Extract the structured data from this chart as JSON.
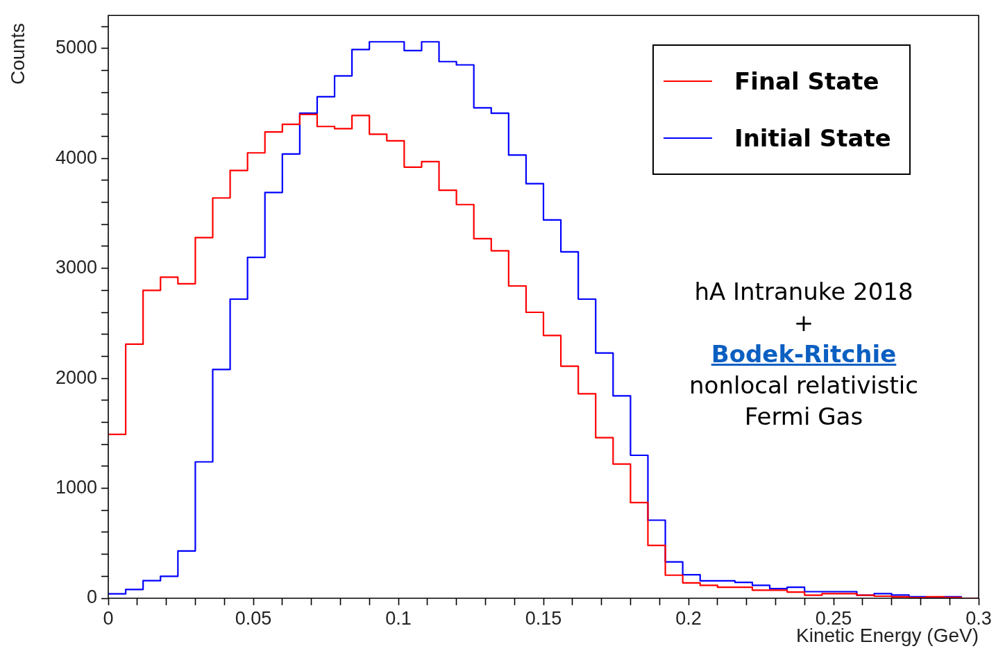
{
  "chart_data": {
    "type": "histogram",
    "xlabel": "Kinetic Energy (GeV)",
    "ylabel": "Counts",
    "annotations": [
      "hA Intranuke 2018",
      "+",
      "Bodek-Ritchie",
      "nonlocal relativistic",
      "Fermi Gas"
    ],
    "bins": [
      0,
      0.006,
      0.012,
      0.018,
      0.024,
      0.03,
      0.036,
      0.042,
      0.048,
      0.054,
      0.06,
      0.066,
      0.072,
      0.078,
      0.084,
      0.09,
      0.096,
      0.102,
      0.108,
      0.114,
      0.12,
      0.126,
      0.132,
      0.138,
      0.144,
      0.15,
      0.156,
      0.162,
      0.168,
      0.174,
      0.18,
      0.186,
      0.192,
      0.198,
      0.204,
      0.21,
      0.216,
      0.222,
      0.228,
      0.234,
      0.24,
      0.246,
      0.252,
      0.258,
      0.264,
      0.27,
      0.276,
      0.282,
      0.288,
      0.294,
      0.3
    ],
    "series": [
      {
        "name": "Final State",
        "color": "#ff0000",
        "values": [
          1490,
          2310,
          2800,
          2920,
          2860,
          3280,
          3640,
          3890,
          4050,
          4240,
          4310,
          4400,
          4290,
          4270,
          4390,
          4220,
          4160,
          3920,
          3970,
          3710,
          3580,
          3270,
          3160,
          2840,
          2600,
          2390,
          2110,
          1860,
          1460,
          1220,
          870,
          480,
          210,
          140,
          117,
          100,
          100,
          73,
          73,
          56,
          27,
          42,
          42,
          27,
          19,
          13,
          6,
          13,
          8,
          0
        ]
      },
      {
        "name": "Initial State",
        "color": "#0000ff",
        "values": [
          40,
          80,
          160,
          200,
          430,
          1240,
          2080,
          2720,
          3100,
          3690,
          4040,
          4410,
          4560,
          4750,
          4990,
          5060,
          5060,
          4980,
          5060,
          4880,
          4850,
          4460,
          4410,
          4030,
          3770,
          3440,
          3150,
          2720,
          2230,
          1840,
          1300,
          710,
          330,
          214,
          158,
          158,
          144,
          117,
          87,
          100,
          60,
          60,
          60,
          27,
          42,
          29,
          13,
          8,
          13,
          0
        ]
      }
    ],
    "xlim": [
      0,
      0.3
    ],
    "xticks": [
      0,
      {
        "value": 0.01,
        "label": null
      },
      {
        "value": 0.02,
        "label": null
      },
      {
        "value": 0.03,
        "label": null
      },
      {
        "value": 0.04,
        "label": null
      },
      0.05,
      {
        "value": 0.06,
        "label": null
      },
      {
        "value": 0.07,
        "label": null
      },
      {
        "value": 0.08,
        "label": null
      },
      {
        "value": 0.09,
        "label": null
      },
      0.1,
      {
        "value": 0.11,
        "label": null
      },
      {
        "value": 0.12,
        "label": null
      },
      {
        "value": 0.13,
        "label": null
      },
      {
        "value": 0.14,
        "label": null
      },
      0.15,
      {
        "value": 0.16,
        "label": null
      },
      {
        "value": 0.17,
        "label": null
      },
      {
        "value": 0.18,
        "label": null
      },
      {
        "value": 0.19,
        "label": null
      },
      0.2,
      {
        "value": 0.21,
        "label": null
      },
      {
        "value": 0.22,
        "label": null
      },
      {
        "value": 0.23,
        "label": null
      },
      {
        "value": 0.24,
        "label": null
      },
      0.25,
      {
        "value": 0.26,
        "label": null
      },
      {
        "value": 0.27,
        "label": null
      },
      {
        "value": 0.28,
        "label": null
      },
      {
        "value": 0.29,
        "label": null
      },
      0.3
    ],
    "ylim": [
      0,
      5300
    ],
    "yticks": [
      0,
      {
        "value": 200,
        "label": null
      },
      {
        "value": 400,
        "label": null
      },
      {
        "value": 600,
        "label": null
      },
      {
        "value": 800,
        "label": null
      },
      1000,
      {
        "value": 1200,
        "label": null
      },
      {
        "value": 1400,
        "label": null
      },
      {
        "value": 1600,
        "label": null
      },
      {
        "value": 1800,
        "label": null
      },
      2000,
      {
        "value": 2200,
        "label": null
      },
      {
        "value": 2400,
        "label": null
      },
      {
        "value": 2600,
        "label": null
      },
      {
        "value": 2800,
        "label": null
      },
      3000,
      {
        "value": 3200,
        "label": null
      },
      {
        "value": 3400,
        "label": null
      },
      {
        "value": 3600,
        "label": null
      },
      {
        "value": 3800,
        "label": null
      },
      4000,
      {
        "value": 4200,
        "label": null
      },
      {
        "value": 4400,
        "label": null
      },
      {
        "value": 4600,
        "label": null
      },
      {
        "value": 4800,
        "label": null
      },
      5000,
      {
        "value": 5200,
        "label": null
      }
    ],
    "legend": "top right",
    "line_style": "solid"
  }
}
